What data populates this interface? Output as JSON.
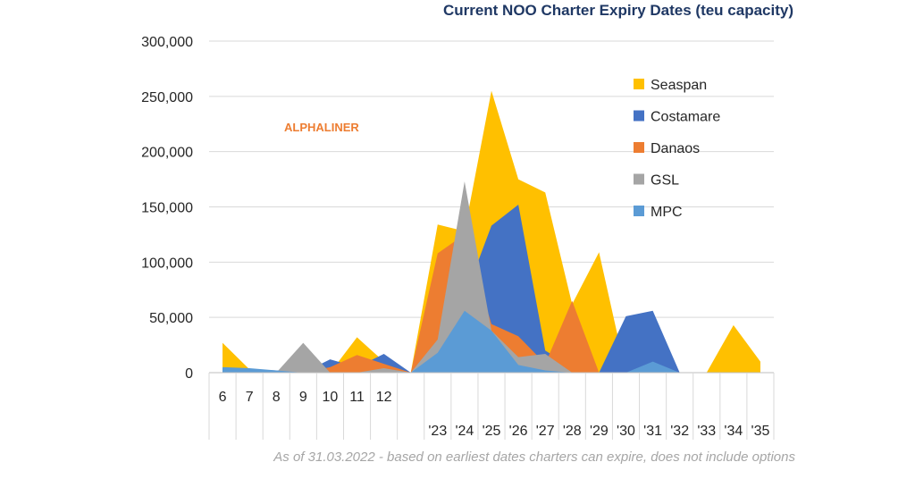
{
  "chart_data": {
    "type": "area",
    "title": "Current NOO Charter Expiry Dates (teu capacity)",
    "footnote": "As of 31.03.2022 -  based on earliest dates charters can expire, does not include options",
    "watermark": "ALPHALINER",
    "categories": [
      "6",
      "7",
      "8",
      "9",
      "10",
      "11",
      "12",
      "",
      "'23",
      "'24",
      "'25",
      "'26",
      "'27",
      "'28",
      "'29",
      "'30",
      "'31",
      "'32",
      "'33",
      "'34",
      "'35"
    ],
    "ylim": [
      0,
      300000
    ],
    "yticks": [
      "0",
      "50,000",
      "100,000",
      "150,000",
      "200,000",
      "250,000",
      "300,000"
    ],
    "grid": true,
    "legend_position": "right",
    "series": [
      {
        "name": "Seaspan",
        "color": "#ffc000",
        "values": [
          27000,
          3000,
          0,
          0,
          0,
          32000,
          10000,
          0,
          134000,
          128000,
          255000,
          175000,
          163000,
          62000,
          109000,
          0,
          0,
          0,
          0,
          43000,
          10000
        ]
      },
      {
        "name": "Costamare",
        "color": "#4472c4",
        "values": [
          4000,
          3000,
          2000,
          0,
          12000,
          5000,
          17000,
          0,
          50000,
          68000,
          133000,
          152000,
          20000,
          5000,
          0,
          51000,
          56000,
          0,
          0,
          0,
          0
        ]
      },
      {
        "name": "Danaos",
        "color": "#ed7d31",
        "values": [
          0,
          0,
          0,
          0,
          5000,
          16000,
          8000,
          0,
          108000,
          125000,
          44000,
          33000,
          8000,
          65000,
          0,
          0,
          0,
          0,
          0,
          0,
          0
        ]
      },
      {
        "name": "GSL",
        "color": "#a5a5a5",
        "values": [
          0,
          0,
          0,
          27000,
          0,
          0,
          4000,
          0,
          30000,
          173000,
          38000,
          14000,
          17000,
          0,
          0,
          0,
          0,
          0,
          0,
          0,
          0
        ]
      },
      {
        "name": "MPC",
        "color": "#5b9bd5",
        "values": [
          5000,
          4000,
          2000,
          0,
          0,
          0,
          0,
          0,
          18000,
          56000,
          38000,
          7000,
          2000,
          0,
          0,
          0,
          10000,
          0,
          0,
          0,
          0
        ]
      }
    ]
  }
}
